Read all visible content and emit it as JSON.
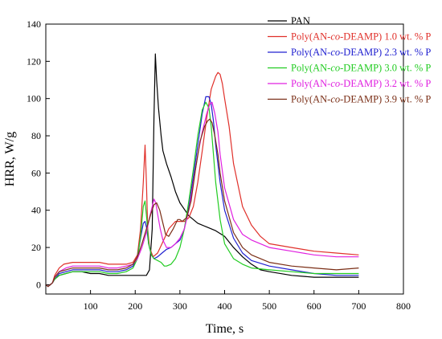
{
  "chart_data": {
    "type": "line",
    "title": "",
    "xlabel": "Time, s",
    "ylabel": "HRR, W/g",
    "xlim": [
      0,
      800
    ],
    "ylim": [
      -5,
      140
    ],
    "xticks": [
      100,
      200,
      300,
      400,
      500,
      600,
      700,
      800
    ],
    "yticks": [
      0,
      20,
      40,
      60,
      80,
      100,
      120,
      140
    ],
    "x_tick_labels": [
      "100",
      "200",
      "300",
      "400",
      "500",
      "600",
      "700",
      "800"
    ],
    "y_tick_labels": [
      "0",
      "20",
      "40",
      "60",
      "80",
      "100",
      "120",
      "140"
    ],
    "grid": false,
    "legend_position": "top-right",
    "series": [
      {
        "name": "PAN",
        "label_parts": [
          "PAN",
          "",
          ""
        ],
        "color": "#000000",
        "x": [
          0,
          5,
          10,
          15,
          20,
          30,
          45,
          60,
          80,
          100,
          120,
          140,
          160,
          180,
          200,
          215,
          225,
          232,
          238,
          242,
          245,
          248,
          252,
          258,
          262,
          270,
          280,
          290,
          300,
          320,
          340,
          360,
          380,
          400,
          420,
          440,
          460,
          480,
          500,
          550,
          600,
          650,
          700
        ],
        "y": [
          0,
          -1,
          0,
          1,
          3,
          5,
          6,
          7,
          7,
          6,
          6,
          5,
          5,
          5,
          5,
          5,
          5,
          8,
          30,
          90,
          124,
          110,
          95,
          80,
          72,
          65,
          58,
          50,
          44,
          37,
          33,
          31,
          29,
          26,
          20,
          15,
          11,
          8,
          7,
          5,
          4,
          4,
          4
        ]
      },
      {
        "name": "Poly(AN-co-DEAMP) 1.0 wt. % P",
        "label_parts": [
          "Poly(AN-",
          "co",
          "-DEAMP) 1.0 wt. % P"
        ],
        "color": "#e0302a",
        "x": [
          0,
          5,
          10,
          15,
          20,
          30,
          40,
          60,
          80,
          100,
          120,
          140,
          160,
          180,
          195,
          205,
          212,
          218,
          222,
          225,
          228,
          232,
          240,
          250,
          260,
          275,
          290,
          300,
          310,
          320,
          330,
          340,
          350,
          360,
          370,
          380,
          385,
          390,
          395,
          400,
          410,
          420,
          440,
          460,
          480,
          500,
          550,
          600,
          650,
          700
        ],
        "y": [
          0,
          -1,
          0,
          1,
          5,
          9,
          11,
          12,
          12,
          12,
          12,
          11,
          11,
          11,
          12,
          16,
          30,
          55,
          75,
          55,
          30,
          20,
          15,
          17,
          22,
          30,
          34,
          34,
          34,
          36,
          42,
          55,
          72,
          90,
          105,
          112,
          114,
          113,
          108,
          100,
          85,
          65,
          42,
          32,
          26,
          22,
          20,
          18,
          17,
          16
        ]
      },
      {
        "name": "Poly(AN-co-DEAMP) 2.3 wt. % P",
        "label_parts": [
          "Poly(AN-",
          "co",
          "-DEAMP) 2.3 wt. % P"
        ],
        "color": "#2020d0",
        "x": [
          0,
          5,
          10,
          15,
          20,
          30,
          45,
          60,
          80,
          100,
          120,
          140,
          160,
          180,
          195,
          205,
          212,
          218,
          222,
          226,
          230,
          236,
          242,
          250,
          260,
          270,
          280,
          290,
          300,
          310,
          320,
          330,
          340,
          350,
          358,
          365,
          370,
          375,
          380,
          390,
          400,
          420,
          440,
          460,
          500,
          550,
          600,
          650,
          700
        ],
        "y": [
          0,
          -1,
          0,
          1,
          3,
          6,
          7,
          8,
          8,
          8,
          8,
          7,
          7,
          8,
          10,
          15,
          25,
          33,
          34,
          30,
          22,
          16,
          14,
          15,
          17,
          19,
          20,
          22,
          24,
          30,
          42,
          58,
          75,
          92,
          101,
          101,
          97,
          88,
          75,
          55,
          40,
          25,
          17,
          13,
          10,
          8,
          6,
          5,
          5
        ]
      },
      {
        "name": "Poly(AN-co-DEAMP) 3.0 wt. % P",
        "label_parts": [
          "Poly(AN-",
          "co",
          "-DEAMP) 3.0 wt. % P"
        ],
        "color": "#22cc22",
        "x": [
          0,
          5,
          10,
          15,
          20,
          30,
          45,
          60,
          80,
          100,
          120,
          140,
          160,
          180,
          195,
          205,
          212,
          218,
          222,
          226,
          230,
          236,
          242,
          250,
          258,
          265,
          270,
          280,
          290,
          300,
          310,
          320,
          330,
          340,
          350,
          358,
          365,
          370,
          375,
          380,
          390,
          400,
          420,
          440,
          460,
          500,
          550,
          600,
          650,
          700
        ],
        "y": [
          0,
          -1,
          0,
          1,
          3,
          5,
          6,
          7,
          7,
          7,
          7,
          6,
          6,
          7,
          9,
          14,
          26,
          42,
          45,
          35,
          22,
          16,
          14,
          13,
          12,
          10,
          10,
          11,
          14,
          20,
          30,
          45,
          62,
          80,
          94,
          98,
          95,
          85,
          70,
          55,
          35,
          22,
          14,
          11,
          9,
          8,
          7,
          6,
          6,
          6
        ]
      },
      {
        "name": "Poly(AN-co-DEAMP) 3.2 wt. % P",
        "label_parts": [
          "Poly(AN-",
          "co",
          "-DEAMP) 3.2 wt. % P"
        ],
        "color": "#e020e0",
        "x": [
          0,
          5,
          10,
          15,
          20,
          30,
          45,
          60,
          80,
          100,
          120,
          140,
          160,
          180,
          195,
          205,
          215,
          225,
          232,
          238,
          242,
          246,
          250,
          256,
          262,
          270,
          280,
          290,
          300,
          310,
          320,
          330,
          340,
          350,
          360,
          367,
          372,
          378,
          385,
          390,
          400,
          420,
          440,
          460,
          500,
          550,
          600,
          650,
          700
        ],
        "y": [
          0,
          -1,
          0,
          1,
          4,
          7,
          9,
          10,
          10,
          10,
          10,
          9,
          9,
          10,
          11,
          14,
          20,
          28,
          36,
          42,
          46,
          44,
          38,
          30,
          24,
          20,
          20,
          22,
          25,
          30,
          40,
          55,
          70,
          82,
          92,
          97,
          98,
          92,
          82,
          70,
          52,
          35,
          27,
          24,
          20,
          18,
          16,
          15,
          15
        ]
      },
      {
        "name": "Poly(AN-co-DEAMP) 3.9 wt. % P",
        "label_parts": [
          "Poly(AN-",
          "co",
          "-DEAMP) 3.9 wt. % P"
        ],
        "color": "#7a2e16",
        "x": [
          0,
          5,
          10,
          15,
          20,
          30,
          45,
          60,
          80,
          100,
          120,
          140,
          160,
          180,
          195,
          205,
          215,
          225,
          235,
          242,
          248,
          255,
          260,
          268,
          275,
          285,
          295,
          300,
          305,
          315,
          325,
          335,
          345,
          355,
          362,
          367,
          372,
          378,
          385,
          390,
          400,
          420,
          440,
          460,
          500,
          550,
          600,
          650,
          700
        ],
        "y": [
          0,
          -1,
          0,
          1,
          4,
          7,
          8,
          9,
          9,
          9,
          9,
          8,
          8,
          9,
          11,
          15,
          22,
          30,
          38,
          43,
          44,
          40,
          35,
          27,
          26,
          30,
          35,
          35,
          34,
          36,
          45,
          62,
          77,
          85,
          88,
          89,
          87,
          80,
          70,
          60,
          45,
          28,
          20,
          16,
          12,
          10,
          9,
          8,
          9
        ]
      }
    ]
  }
}
